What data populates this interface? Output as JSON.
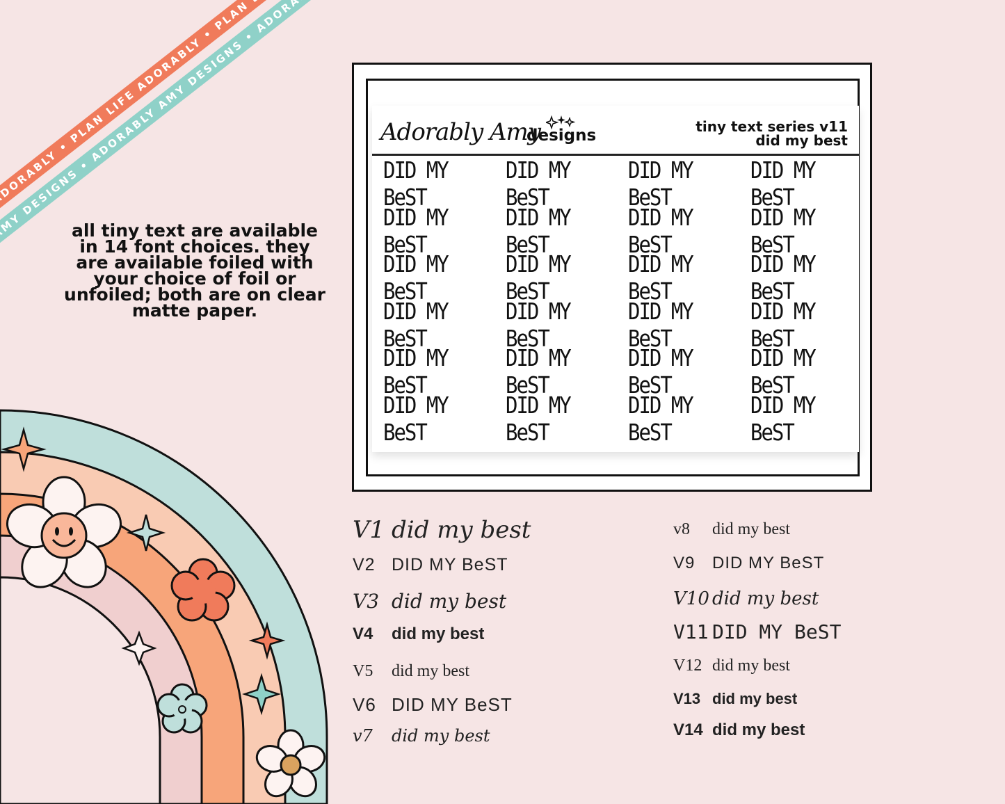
{
  "ribbons": {
    "top": "PLAN LIFE ADORABLY • PLAN LIFE ADORABLY • PLAN LIFE ADORABLY • PLAN LIFE ADORABLY •",
    "bottom": "ADORABLY AMY DESIGNS • ADORABLY AMY DESIGNS • ADORABLY AMY DESIGNS • ADORABLY AMY DESIGNS •"
  },
  "info_text": "all tiny text are available in 14 font choices. they are available foiled with your choice of foil or unfoiled; both are on clear matte paper.",
  "sheet": {
    "brand_script": "Adorably Amy",
    "brand_word": "designs",
    "series_line1": "tiny text series v11",
    "series_line2": "did my best",
    "sticker_text": "DID MY BeST",
    "rows": 6,
    "cols": 4
  },
  "font_versions": [
    {
      "ver": "V1",
      "sample": "did my best"
    },
    {
      "ver": "V2",
      "sample": "DID MY BeST"
    },
    {
      "ver": "V3",
      "sample": "did my best"
    },
    {
      "ver": "V4",
      "sample": "did my best"
    },
    {
      "ver": "V5",
      "sample": "did my best"
    },
    {
      "ver": "V6",
      "sample": "DID MY BeST"
    },
    {
      "ver": "v7",
      "sample": "did my best"
    },
    {
      "ver": "v8",
      "sample": "did my best"
    },
    {
      "ver": "V9",
      "sample": "DID MY BeST"
    },
    {
      "ver": "V10",
      "sample": "did my best"
    },
    {
      "ver": "V11",
      "sample": "DID MY BeST"
    },
    {
      "ver": "V12",
      "sample": "did my best"
    },
    {
      "ver": "V13",
      "sample": "did my best"
    },
    {
      "ver": "V14",
      "sample": "did my best"
    }
  ],
  "colors": {
    "background": "#f6e5e5",
    "ribbon_coral": "#f07b5b",
    "ribbon_teal": "#8fd1c8",
    "rainbow_teal": "#bfdfdb",
    "rainbow_peach": "#f9cbb3",
    "rainbow_orange": "#f7a57a",
    "rainbow_pink": "#f0cfcf",
    "flower_coral": "#f07b5b",
    "flower_white": "#fdf3f1",
    "flower_center": "#d9a25f"
  }
}
